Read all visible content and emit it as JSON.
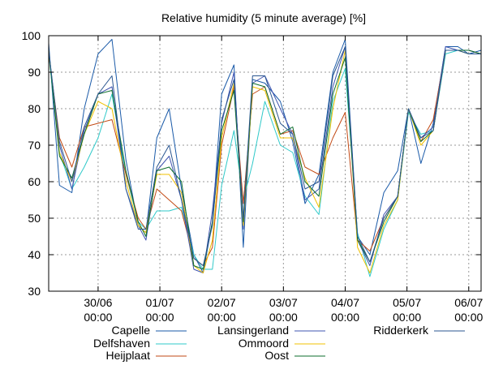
{
  "chart_data": {
    "type": "line",
    "title": "Relative humidity (5 minute average) [%]",
    "xlabel": "",
    "ylabel": "",
    "ylim": [
      30,
      100
    ],
    "xlim": [
      0,
      14
    ],
    "yticks": [
      30,
      40,
      50,
      60,
      70,
      80,
      90,
      100
    ],
    "xticks": [
      {
        "x": 1.6,
        "label": [
          "30/06",
          "00:00"
        ]
      },
      {
        "x": 3.6,
        "label": [
          "01/07",
          "00:00"
        ]
      },
      {
        "x": 5.6,
        "label": [
          "02/07",
          "00:00"
        ]
      },
      {
        "x": 7.6,
        "label": [
          "03/07",
          "00:00"
        ]
      },
      {
        "x": 9.6,
        "label": [
          "04/07",
          "00:00"
        ]
      },
      {
        "x": 11.6,
        "label": [
          "05/07",
          "00:00"
        ]
      },
      {
        "x": 13.6,
        "label": [
          "06/07",
          "00:00"
        ]
      }
    ],
    "grid": true,
    "legend_position": "bottom",
    "x": [
      0.0,
      0.35,
      0.75,
      1.15,
      1.6,
      2.05,
      2.5,
      2.9,
      3.15,
      3.5,
      3.9,
      4.3,
      4.7,
      5.0,
      5.3,
      5.6,
      6.0,
      6.3,
      6.6,
      7.0,
      7.5,
      7.9,
      8.3,
      8.75,
      9.2,
      9.6,
      10.0,
      10.4,
      10.85,
      11.3,
      11.65,
      12.05,
      12.45,
      12.85,
      13.25,
      13.6,
      14.0
    ],
    "series": [
      {
        "name": "Capelle",
        "color": "#1a5aa8",
        "values": [
          98,
          59,
          57,
          80,
          95,
          99,
          66,
          48,
          46,
          72,
          80,
          58,
          40,
          35,
          49,
          84,
          92,
          42,
          88,
          87,
          82,
          71,
          54,
          62,
          90,
          99,
          45,
          40,
          57,
          63,
          80,
          65,
          76,
          97,
          97,
          95,
          96
        ]
      },
      {
        "name": "Delfshaven",
        "color": "#2fc9c9",
        "values": [
          95,
          68,
          58,
          64,
          72,
          84,
          62,
          49,
          47,
          52,
          52,
          53,
          40,
          36,
          36,
          59,
          74,
          55,
          65,
          82,
          70,
          68,
          56,
          51,
          82,
          91,
          46,
          34,
          47,
          55,
          79,
          73,
          74,
          95,
          96,
          95,
          95
        ]
      },
      {
        "name": "Heijplaat",
        "color": "#c24a14",
        "values": [
          95,
          72,
          64,
          75,
          76,
          77,
          62,
          50,
          47,
          58,
          55,
          52,
          39,
          37,
          42,
          70,
          86,
          54,
          84,
          86,
          73,
          74,
          64,
          62,
          72,
          79,
          44,
          41,
          50,
          56,
          80,
          71,
          77,
          96,
          96,
          96,
          95
        ]
      },
      {
        "name": "Lansingerland",
        "color": "#3f54b0",
        "values": [
          96,
          70,
          58,
          74,
          84,
          86,
          58,
          48,
          44,
          63,
          67,
          55,
          36,
          35,
          52,
          76,
          90,
          47,
          87,
          89,
          80,
          73,
          55,
          58,
          86,
          97,
          44,
          37,
          51,
          56,
          80,
          72,
          75,
          97,
          96,
          96,
          95
        ]
      },
      {
        "name": "Ommoord",
        "color": "#f0c000",
        "values": [
          96,
          68,
          60,
          73,
          82,
          80,
          60,
          48,
          46,
          62,
          62,
          57,
          37,
          35,
          44,
          72,
          87,
          48,
          86,
          85,
          72,
          72,
          61,
          53,
          80,
          96,
          42,
          35,
          48,
          55,
          80,
          70,
          74,
          96,
          96,
          95,
          95
        ]
      },
      {
        "name": "Oost",
        "color": "#0d6e2c",
        "values": [
          96,
          67,
          61,
          73,
          84,
          85,
          63,
          49,
          45,
          63,
          64,
          60,
          37,
          36,
          49,
          74,
          85,
          49,
          87,
          86,
          73,
          75,
          60,
          56,
          84,
          94,
          44,
          38,
          49,
          56,
          80,
          71,
          74,
          96,
          96,
          96,
          95
        ]
      },
      {
        "name": "Ridderkerk",
        "color": "#2a5690",
        "values": [
          96,
          71,
          60,
          75,
          84,
          89,
          58,
          47,
          47,
          64,
          70,
          55,
          39,
          37,
          48,
          77,
          88,
          50,
          89,
          89,
          76,
          73,
          58,
          60,
          89,
          97,
          45,
          38,
          50,
          56,
          80,
          72,
          74,
          96,
          96,
          95,
          95
        ]
      }
    ]
  }
}
